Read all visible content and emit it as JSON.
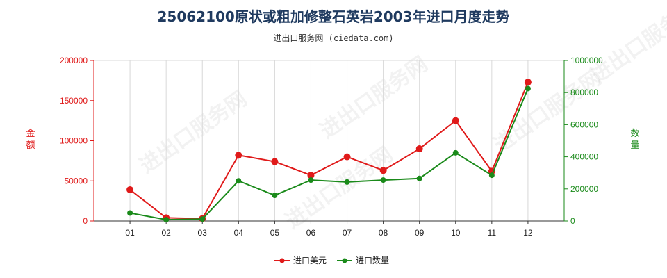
{
  "title": "25062100原状或粗加修整石英岩2003年进口月度走势",
  "subtitle": "进出口服务网 (ciedata.com)",
  "watermark": "进出口服务网",
  "chart_data": {
    "type": "line",
    "categories": [
      "01",
      "02",
      "03",
      "04",
      "05",
      "06",
      "07",
      "08",
      "09",
      "10",
      "11",
      "12"
    ],
    "y_left": {
      "label": "金额",
      "range": [
        0,
        200000
      ],
      "ticks": [
        "0",
        "50000",
        "100000",
        "150000",
        "200000"
      ],
      "color": "#e01a1a"
    },
    "y_right": {
      "label": "数量",
      "range": [
        0,
        1000000
      ],
      "ticks": [
        "0",
        "200000",
        "400000",
        "600000",
        "800000",
        "1000000"
      ],
      "color": "#1a8a1a"
    },
    "grid": "vertical",
    "legend_position": "bottom",
    "series": [
      {
        "name": "进口美元",
        "axis": "left",
        "color": "#e01a1a",
        "values": [
          39000,
          4000,
          3000,
          82000,
          74000,
          57000,
          80000,
          63000,
          90000,
          125000,
          62000,
          173000
        ]
      },
      {
        "name": "进口数量",
        "axis": "right",
        "color": "#1a8a1a",
        "values": [
          50000,
          8000,
          12000,
          250000,
          160000,
          255000,
          243000,
          255000,
          265000,
          425000,
          285000,
          825000
        ]
      }
    ]
  }
}
